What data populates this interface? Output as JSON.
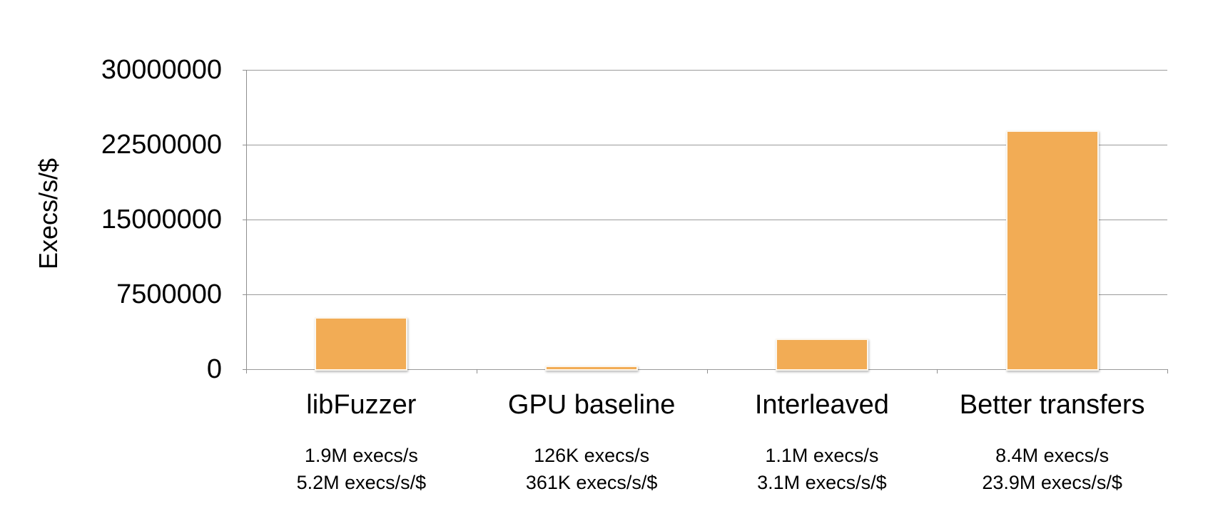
{
  "chart_data": {
    "type": "bar",
    "title": "",
    "xlabel": "",
    "ylabel": "Execs/s/$",
    "categories": [
      "libFuzzer",
      "GPU baseline",
      "Interleaved",
      "Better transfers"
    ],
    "values": [
      5200000,
      361000,
      3100000,
      23900000
    ],
    "ylim": [
      0,
      30000000
    ],
    "y_ticks": [
      0,
      7500000,
      15000000,
      22500000,
      30000000
    ],
    "y_tick_labels": [
      "0",
      "7500000",
      "15000000",
      "22500000",
      "30000000"
    ],
    "grid": true,
    "legend": false,
    "bar_color": "#F2AC55",
    "axis_color": "#8f8f8f",
    "gridline_color": "#9b9b9b",
    "annotations": [
      {
        "line1": "1.9M execs/s",
        "line2": "5.2M execs/s/$"
      },
      {
        "line1": "126K execs/s",
        "line2": "361K execs/s/$"
      },
      {
        "line1": "1.1M execs/s",
        "line2": "3.1M execs/s/$"
      },
      {
        "line1": "8.4M execs/s",
        "line2": "23.9M execs/s/$"
      }
    ]
  }
}
